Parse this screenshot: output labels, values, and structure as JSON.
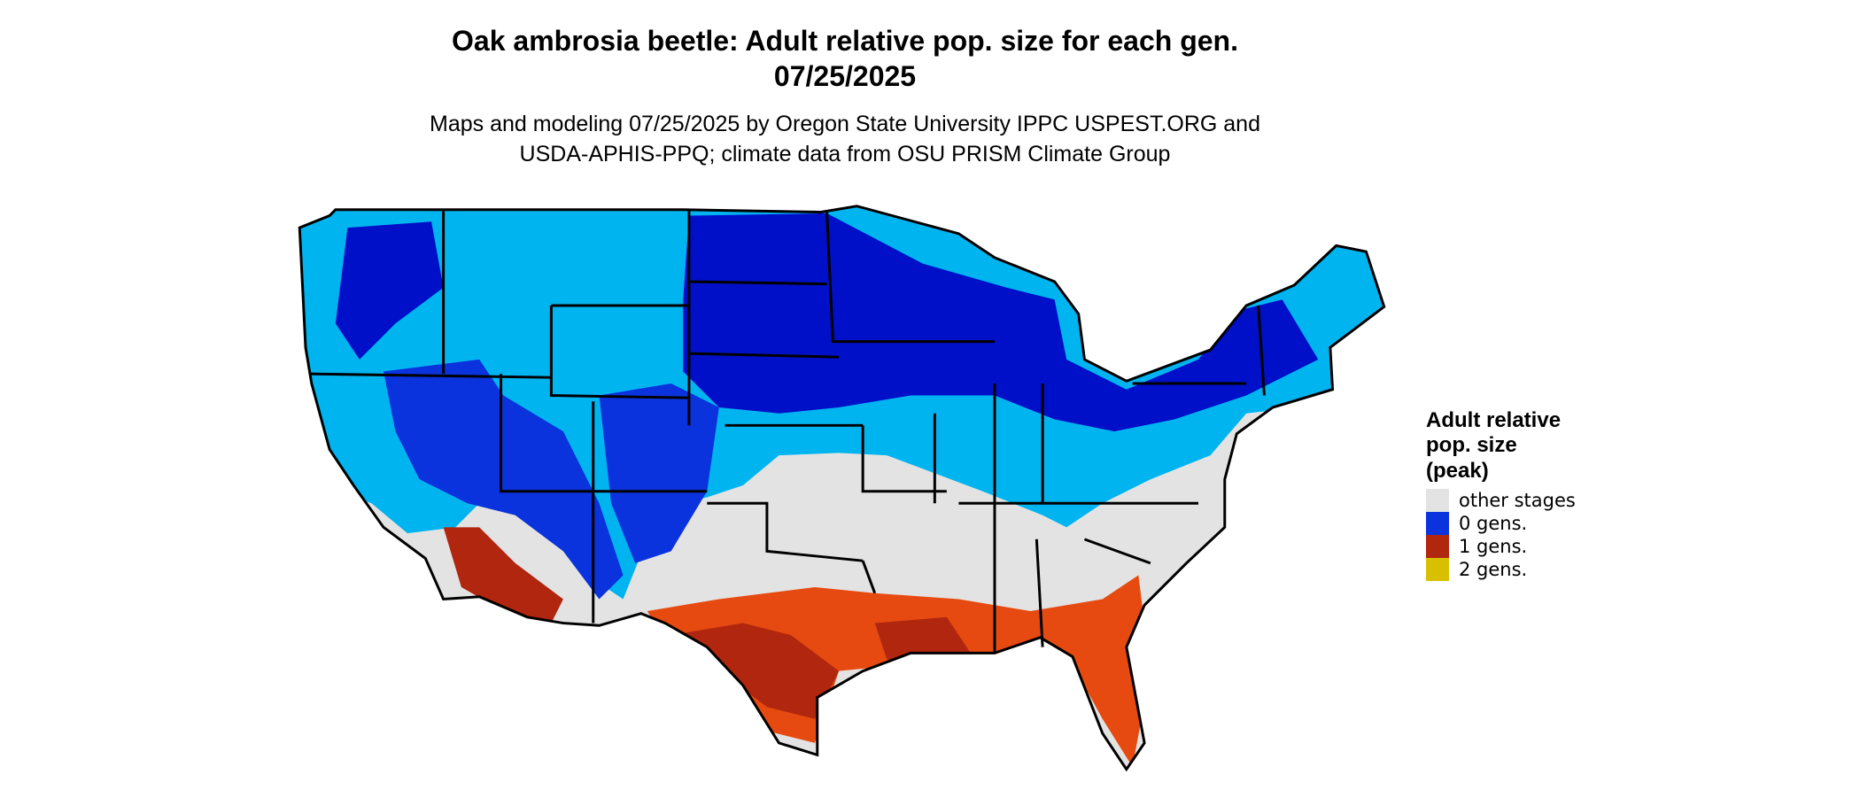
{
  "title": [
    "Oak ambrosia beetle: Adult relative pop. size for each gen.",
    "07/25/2025"
  ],
  "subtitle": [
    "Maps and modeling 07/25/2025 by Oregon State University IPPC USPEST.ORG and",
    "USDA-APHIS-PPQ; climate data from OSU PRISM Climate Group"
  ],
  "legend": {
    "title": [
      "Adult relative",
      "pop. size",
      "(peak)"
    ],
    "items": [
      {
        "label": "other stages",
        "color": "#e3e3e3"
      },
      {
        "label": "0 gens.",
        "color": "#0a33dd"
      },
      {
        "label": "1 gens.",
        "color": "#b0260f"
      },
      {
        "label": "2 gens.",
        "color": "#d8c000"
      }
    ]
  }
}
